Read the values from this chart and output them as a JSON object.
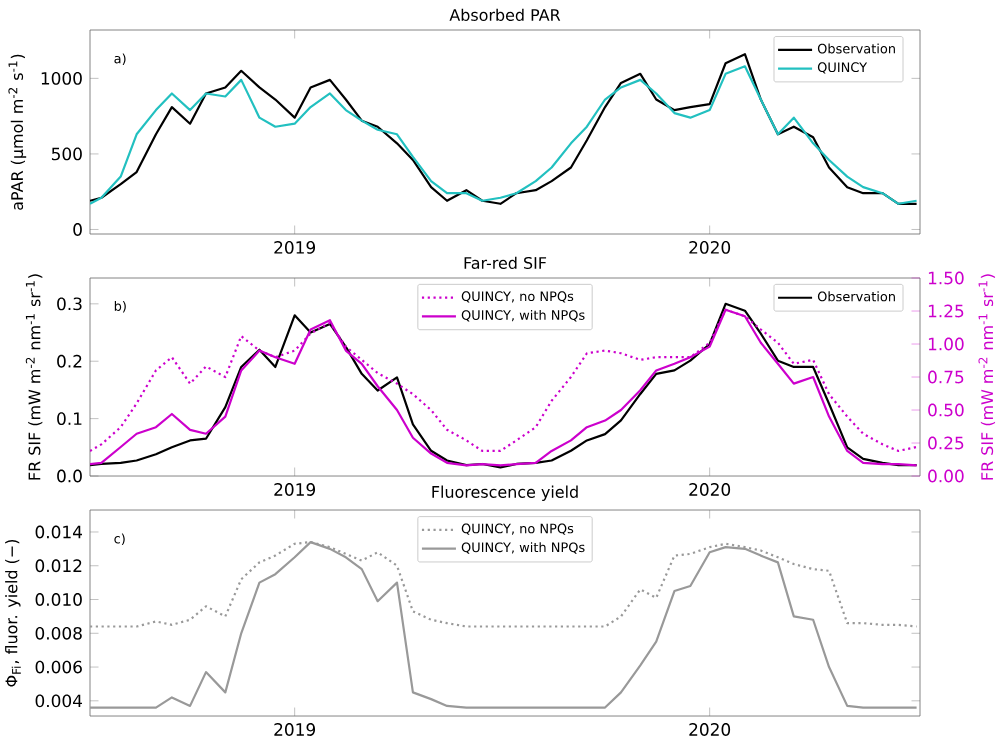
{
  "chart_data": [
    {
      "type": "line",
      "title": "Absorbed PAR",
      "ylabel": "aPAR (µmol m$^{-2}$ s$^{-1}$)",
      "annotations": [
        "a)"
      ],
      "x": [
        "2018-07-05",
        "2018-07-15",
        "2018-08-01",
        "2018-08-15",
        "2018-09-01",
        "2018-09-15",
        "2018-10-01",
        "2018-10-15",
        "2018-11-01",
        "2018-11-15",
        "2018-12-01",
        "2018-12-15",
        "2019-01-01",
        "2019-01-15",
        "2019-02-01",
        "2019-02-15",
        "2019-03-01",
        "2019-03-15",
        "2019-04-01",
        "2019-04-15",
        "2019-05-01",
        "2019-05-15",
        "2019-06-01",
        "2019-06-15",
        "2019-07-01",
        "2019-07-15",
        "2019-08-01",
        "2019-08-15",
        "2019-09-01",
        "2019-09-15",
        "2019-10-01",
        "2019-10-15",
        "2019-11-01",
        "2019-11-15",
        "2019-12-01",
        "2019-12-15",
        "2020-01-01",
        "2020-01-15",
        "2020-02-01",
        "2020-02-15",
        "2020-03-01",
        "2020-03-15",
        "2020-04-01",
        "2020-04-15",
        "2020-05-01",
        "2020-05-15",
        "2020-06-01",
        "2020-06-15",
        "2020-07-01"
      ],
      "series": [
        {
          "name": "Observation",
          "color": "#000000",
          "line_style": "solid",
          "values": [
            190,
            210,
            300,
            380,
            630,
            810,
            700,
            900,
            940,
            1050,
            940,
            860,
            740,
            940,
            990,
            860,
            720,
            680,
            570,
            460,
            280,
            190,
            260,
            190,
            170,
            240,
            260,
            320,
            410,
            590,
            810,
            970,
            1030,
            860,
            790,
            810,
            830,
            1100,
            1160,
            860,
            630,
            680,
            610,
            410,
            280,
            240,
            240,
            170,
            170
          ]
        },
        {
          "name": "QUINCY",
          "color": "#22c0c0",
          "line_style": "solid",
          "values": [
            170,
            210,
            350,
            630,
            790,
            900,
            790,
            900,
            880,
            990,
            740,
            680,
            700,
            810,
            900,
            790,
            720,
            660,
            630,
            480,
            320,
            240,
            240,
            190,
            210,
            240,
            320,
            410,
            570,
            680,
            860,
            940,
            990,
            900,
            770,
            740,
            790,
            1030,
            1080,
            860,
            630,
            740,
            570,
            460,
            350,
            280,
            240,
            170,
            190
          ]
        }
      ],
      "xlim": [
        "2018-07-05",
        "2020-07-04"
      ],
      "xticks": [
        "2019",
        "2020"
      ],
      "ylim": [
        -30,
        1320
      ],
      "yticks": [
        0,
        500,
        1000
      ],
      "legend": "top right",
      "marker": "none",
      "grid": false
    },
    {
      "type": "line",
      "title": "Far-red SIF",
      "ylabel": "FR SIF (mW m$^{-2}$ nm$^{-1}$ sr$^{-1}$)",
      "y2label": "FR SIF (mW m$^{-2}$ nm$^{-1}$ sr$^{-1}$)",
      "annotations": [
        "b)"
      ],
      "x": [
        "2018-07-05",
        "2018-07-15",
        "2018-08-01",
        "2018-08-15",
        "2018-09-01",
        "2018-09-15",
        "2018-10-01",
        "2018-10-15",
        "2018-11-01",
        "2018-11-15",
        "2018-12-01",
        "2018-12-15",
        "2019-01-01",
        "2019-01-15",
        "2019-02-01",
        "2019-02-15",
        "2019-03-01",
        "2019-03-15",
        "2019-04-01",
        "2019-04-15",
        "2019-05-01",
        "2019-05-15",
        "2019-06-01",
        "2019-06-15",
        "2019-07-01",
        "2019-07-15",
        "2019-08-01",
        "2019-08-15",
        "2019-09-01",
        "2019-09-15",
        "2019-10-01",
        "2019-10-15",
        "2019-11-01",
        "2019-11-15",
        "2019-12-01",
        "2019-12-15",
        "2020-01-01",
        "2020-01-15",
        "2020-02-01",
        "2020-02-15",
        "2020-03-01",
        "2020-03-15",
        "2020-04-01",
        "2020-04-15",
        "2020-05-01",
        "2020-05-15",
        "2020-06-01",
        "2020-06-15",
        "2020-07-01"
      ],
      "series": [
        {
          "name": "QUINCY, no NPQs",
          "color": "#cc00cc",
          "line_style": "dotted",
          "axis": "y2",
          "values": [
            0.19,
            0.24,
            0.37,
            0.55,
            0.8,
            0.9,
            0.7,
            0.83,
            0.75,
            1.06,
            0.95,
            0.9,
            0.95,
            1.08,
            1.16,
            0.98,
            0.88,
            0.78,
            0.7,
            0.62,
            0.5,
            0.35,
            0.27,
            0.19,
            0.19,
            0.27,
            0.37,
            0.57,
            0.75,
            0.93,
            0.95,
            0.93,
            0.88,
            0.9,
            0.9,
            0.9,
            1.01,
            1.26,
            1.21,
            1.11,
            1.01,
            0.85,
            0.88,
            0.62,
            0.45,
            0.32,
            0.24,
            0.19,
            0.22
          ]
        },
        {
          "name": "QUINCY, with NPQs",
          "color": "#cc00cc",
          "line_style": "solid",
          "axis": "y2",
          "values": [
            0.09,
            0.1,
            0.22,
            0.32,
            0.37,
            0.47,
            0.35,
            0.32,
            0.45,
            0.8,
            0.95,
            0.9,
            0.85,
            1.11,
            1.18,
            0.95,
            0.85,
            0.68,
            0.5,
            0.29,
            0.17,
            0.1,
            0.08,
            0.09,
            0.08,
            0.09,
            0.1,
            0.19,
            0.27,
            0.37,
            0.42,
            0.5,
            0.65,
            0.8,
            0.85,
            0.9,
            0.98,
            1.26,
            1.21,
            1.01,
            0.85,
            0.7,
            0.75,
            0.45,
            0.19,
            0.1,
            0.09,
            0.09,
            0.08
          ]
        },
        {
          "name": "Observation",
          "color": "#000000",
          "line_style": "solid",
          "axis": "y",
          "values": [
            0.019,
            0.021,
            0.023,
            0.027,
            0.038,
            0.05,
            0.062,
            0.065,
            0.12,
            0.19,
            0.22,
            0.19,
            0.28,
            0.25,
            0.265,
            0.225,
            0.178,
            0.149,
            0.172,
            0.09,
            0.044,
            0.027,
            0.019,
            0.021,
            0.015,
            0.021,
            0.023,
            0.027,
            0.044,
            0.062,
            0.073,
            0.097,
            0.143,
            0.178,
            0.184,
            0.201,
            0.23,
            0.3,
            0.288,
            0.248,
            0.201,
            0.19,
            0.19,
            0.126,
            0.05,
            0.03,
            0.023,
            0.019,
            0.019
          ]
        }
      ],
      "xlim": [
        "2018-07-05",
        "2020-07-04"
      ],
      "xticks": [
        "2019",
        "2020"
      ],
      "ylim": [
        0,
        0.345
      ],
      "yticks": [
        {
          "value": 0,
          "label": "0.0"
        },
        0.1,
        0.2,
        0.3
      ],
      "y2lim": [
        0,
        1.5
      ],
      "y2ticks": [
        {
          "value": 0,
          "label": "0.00"
        },
        0.25,
        {
          "value": 0.5,
          "label": "0.50"
        },
        0.75,
        {
          "value": 1,
          "label": "1.00"
        },
        1.25,
        {
          "value": 1.5,
          "label": "1.50"
        }
      ],
      "legend": "top right",
      "marker": "none",
      "grid": false
    },
    {
      "type": "line",
      "title": "Fluorescence yield",
      "ylabel": "Φ$_{Fi}$, fluor. yield (−)",
      "annotations": [
        "c)"
      ],
      "x": [
        "2018-07-05",
        "2018-07-15",
        "2018-08-01",
        "2018-08-15",
        "2018-09-01",
        "2018-09-15",
        "2018-10-01",
        "2018-10-15",
        "2018-11-01",
        "2018-11-15",
        "2018-12-01",
        "2018-12-15",
        "2019-01-01",
        "2019-01-15",
        "2019-02-01",
        "2019-02-15",
        "2019-03-01",
        "2019-03-15",
        "2019-04-01",
        "2019-04-15",
        "2019-05-01",
        "2019-05-15",
        "2019-06-01",
        "2019-06-15",
        "2019-07-01",
        "2019-07-15",
        "2019-08-01",
        "2019-08-15",
        "2019-09-01",
        "2019-09-15",
        "2019-10-01",
        "2019-10-15",
        "2019-11-01",
        "2019-11-15",
        "2019-12-01",
        "2019-12-15",
        "2020-01-01",
        "2020-01-15",
        "2020-02-01",
        "2020-02-15",
        "2020-03-01",
        "2020-03-15",
        "2020-04-01",
        "2020-04-15",
        "2020-05-01",
        "2020-05-15",
        "2020-06-01",
        "2020-06-15",
        "2020-07-01"
      ],
      "series": [
        {
          "name": "QUINCY, no NPQs",
          "color": "#999999",
          "line_style": "dotted",
          "values": [
            0.0084,
            0.0084,
            0.0084,
            0.0084,
            0.0087,
            0.0085,
            0.0088,
            0.0096,
            0.009,
            0.0112,
            0.0122,
            0.0126,
            0.0133,
            0.0134,
            0.0131,
            0.0127,
            0.0123,
            0.0128,
            0.012,
            0.0093,
            0.0088,
            0.0086,
            0.0084,
            0.0084,
            0.0084,
            0.0084,
            0.0084,
            0.0084,
            0.0084,
            0.0084,
            0.0084,
            0.009,
            0.0106,
            0.0101,
            0.0126,
            0.0127,
            0.0131,
            0.0133,
            0.0131,
            0.0129,
            0.0125,
            0.0121,
            0.0118,
            0.0117,
            0.0086,
            0.0086,
            0.0085,
            0.0085,
            0.0084
          ]
        },
        {
          "name": "QUINCY, with NPQs",
          "color": "#999999",
          "line_style": "solid",
          "values": [
            0.0036,
            0.0036,
            0.0036,
            0.0036,
            0.0036,
            0.0042,
            0.0037,
            0.0057,
            0.0045,
            0.008,
            0.011,
            0.0115,
            0.0125,
            0.0134,
            0.013,
            0.0125,
            0.0118,
            0.0099,
            0.011,
            0.0045,
            0.0041,
            0.0037,
            0.0036,
            0.0036,
            0.0036,
            0.0036,
            0.0036,
            0.0036,
            0.0036,
            0.0036,
            0.0036,
            0.0045,
            0.0061,
            0.0075,
            0.0105,
            0.0108,
            0.0128,
            0.0131,
            0.013,
            0.0126,
            0.0122,
            0.009,
            0.0088,
            0.006,
            0.0037,
            0.0036,
            0.0036,
            0.0036,
            0.0036
          ]
        }
      ],
      "xlim": [
        "2018-07-05",
        "2020-07-04"
      ],
      "xticks": [
        "2019",
        "2020"
      ],
      "ylim": [
        0.0031,
        0.0153
      ],
      "yticks": [
        0.004,
        0.006,
        0.008,
        {
          "value": 0.01,
          "label": "0.010"
        },
        0.012,
        0.014
      ],
      "legend": "top",
      "marker": "none",
      "grid": false
    }
  ]
}
